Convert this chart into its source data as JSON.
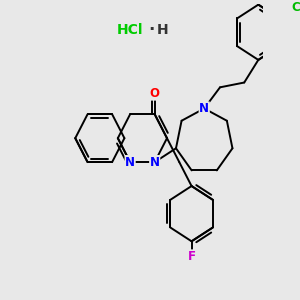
{
  "background_color": "#e8e8e8",
  "bond_color": "#000000",
  "bond_width": 1.4,
  "atom_colors": {
    "N": "#0000ff",
    "O": "#ff0000",
    "F": "#cc00cc",
    "Cl_struct": "#00bb00",
    "Cl_salt": "#00cc00"
  },
  "font_size": 8.5,
  "hcl_fontsize": 10
}
